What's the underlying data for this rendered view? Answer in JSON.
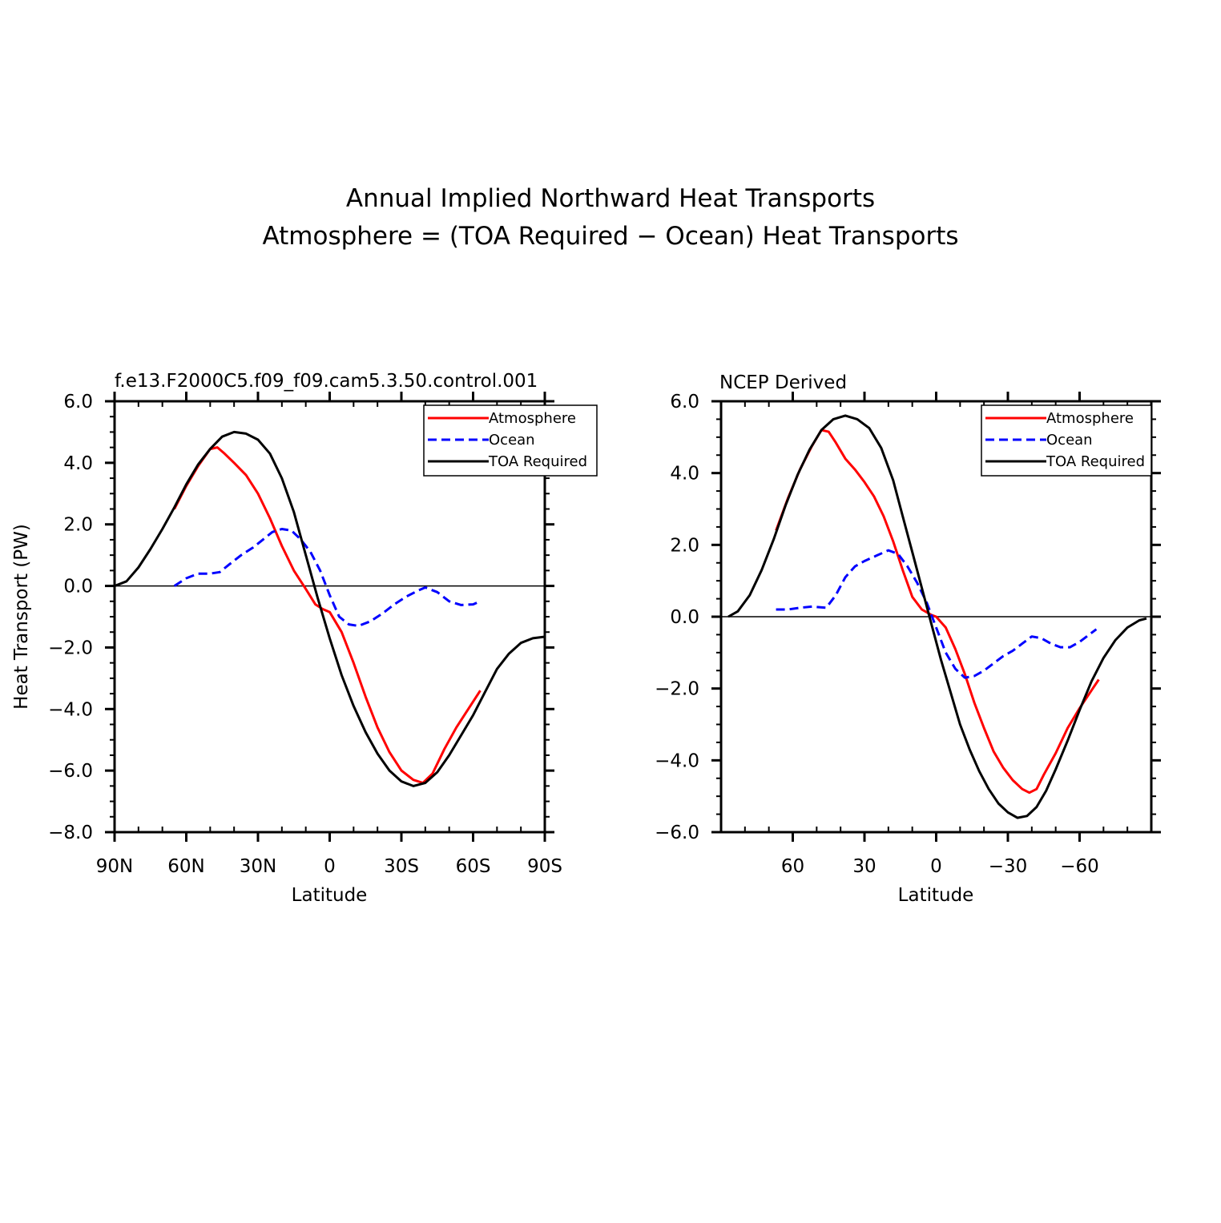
{
  "figure": {
    "title_line1": "Annual Implied Northward Heat Transports",
    "title_line2": "Atmosphere = (TOA Required − Ocean) Heat Transports"
  },
  "colors": {
    "atmosphere": "#ff0000",
    "ocean": "#0000ff",
    "toa": "#000000"
  },
  "chart_data": [
    {
      "type": "line",
      "subtitle": "f.e13.F2000C5.f09_f09.cam5.3.50.control.001",
      "xlabel": "Latitude",
      "ylabel": "Heat Transport (PW)",
      "xlim": [
        90,
        -90
      ],
      "ylim": [
        -8,
        6
      ],
      "xticks": [
        {
          "value": 90,
          "label": "90N"
        },
        {
          "value": 60,
          "label": "60N"
        },
        {
          "value": 30,
          "label": "30N"
        },
        {
          "value": 0,
          "label": "0"
        },
        {
          "value": -30,
          "label": "30S"
        },
        {
          "value": -60,
          "label": "60S"
        },
        {
          "value": -90,
          "label": "90S"
        }
      ],
      "yticks": [
        {
          "value": 6,
          "label": "6.0"
        },
        {
          "value": 4,
          "label": "4.0"
        },
        {
          "value": 2,
          "label": "2.0"
        },
        {
          "value": 0,
          "label": "0.0"
        },
        {
          "value": -2,
          "label": "−2.0"
        },
        {
          "value": -4,
          "label": "−4.0"
        },
        {
          "value": -6,
          "label": "−6.0"
        },
        {
          "value": -8,
          "label": "−8.0"
        }
      ],
      "legend": {
        "position": "top-right",
        "entries": [
          "Atmosphere",
          "Ocean",
          "TOA Required"
        ]
      },
      "series": [
        {
          "name": "Atmosphere",
          "color": "#ff0000",
          "dash": "solid",
          "points": [
            [
              65,
              2.5
            ],
            [
              60,
              3.25
            ],
            [
              55,
              3.9
            ],
            [
              50,
              4.45
            ],
            [
              47,
              4.5
            ],
            [
              44,
              4.3
            ],
            [
              40,
              4.0
            ],
            [
              35,
              3.6
            ],
            [
              30,
              3.0
            ],
            [
              25,
              2.2
            ],
            [
              20,
              1.3
            ],
            [
              15,
              0.5
            ],
            [
              10,
              -0.1
            ],
            [
              6,
              -0.6
            ],
            [
              3,
              -0.75
            ],
            [
              0,
              -0.85
            ],
            [
              -5,
              -1.5
            ],
            [
              -10,
              -2.5
            ],
            [
              -15,
              -3.6
            ],
            [
              -20,
              -4.6
            ],
            [
              -25,
              -5.4
            ],
            [
              -30,
              -6.0
            ],
            [
              -35,
              -6.3
            ],
            [
              -39,
              -6.4
            ],
            [
              -43,
              -6.1
            ],
            [
              -48,
              -5.3
            ],
            [
              -53,
              -4.6
            ],
            [
              -58,
              -4.0
            ],
            [
              -63,
              -3.4
            ]
          ]
        },
        {
          "name": "Ocean",
          "color": "#0000ff",
          "dash": "dashed",
          "points": [
            [
              65,
              0.0
            ],
            [
              60,
              0.25
            ],
            [
              55,
              0.4
            ],
            [
              50,
              0.4
            ],
            [
              46,
              0.45
            ],
            [
              42,
              0.7
            ],
            [
              37,
              1.0
            ],
            [
              32,
              1.25
            ],
            [
              28,
              1.5
            ],
            [
              24,
              1.75
            ],
            [
              20,
              1.85
            ],
            [
              16,
              1.8
            ],
            [
              12,
              1.5
            ],
            [
              8,
              1.1
            ],
            [
              4,
              0.5
            ],
            [
              0,
              -0.3
            ],
            [
              -4,
              -1.0
            ],
            [
              -8,
              -1.25
            ],
            [
              -12,
              -1.3
            ],
            [
              -17,
              -1.15
            ],
            [
              -22,
              -0.9
            ],
            [
              -27,
              -0.6
            ],
            [
              -32,
              -0.35
            ],
            [
              -37,
              -0.15
            ],
            [
              -40,
              -0.05
            ],
            [
              -45,
              -0.2
            ],
            [
              -50,
              -0.5
            ],
            [
              -55,
              -0.62
            ],
            [
              -60,
              -0.6
            ],
            [
              -63,
              -0.5
            ]
          ]
        },
        {
          "name": "TOA Required",
          "color": "#000000",
          "dash": "solid",
          "points": [
            [
              90,
              0.0
            ],
            [
              85,
              0.15
            ],
            [
              80,
              0.6
            ],
            [
              75,
              1.2
            ],
            [
              70,
              1.85
            ],
            [
              65,
              2.55
            ],
            [
              60,
              3.3
            ],
            [
              55,
              3.95
            ],
            [
              50,
              4.45
            ],
            [
              45,
              4.85
            ],
            [
              40,
              5.0
            ],
            [
              35,
              4.95
            ],
            [
              30,
              4.75
            ],
            [
              25,
              4.3
            ],
            [
              20,
              3.5
            ],
            [
              15,
              2.4
            ],
            [
              10,
              1.0
            ],
            [
              5,
              -0.4
            ],
            [
              0,
              -1.7
            ],
            [
              -5,
              -2.9
            ],
            [
              -10,
              -3.9
            ],
            [
              -15,
              -4.75
            ],
            [
              -20,
              -5.45
            ],
            [
              -25,
              -6.0
            ],
            [
              -30,
              -6.35
            ],
            [
              -35,
              -6.5
            ],
            [
              -40,
              -6.4
            ],
            [
              -45,
              -6.05
            ],
            [
              -50,
              -5.5
            ],
            [
              -55,
              -4.85
            ],
            [
              -60,
              -4.2
            ],
            [
              -65,
              -3.45
            ],
            [
              -70,
              -2.7
            ],
            [
              -75,
              -2.2
            ],
            [
              -80,
              -1.85
            ],
            [
              -85,
              -1.7
            ],
            [
              -90,
              -1.65
            ]
          ]
        }
      ]
    },
    {
      "type": "line",
      "subtitle": "NCEP Derived",
      "xlabel": "Latitude",
      "ylabel": "",
      "xlim": [
        90,
        -90
      ],
      "ylim": [
        -6,
        6
      ],
      "xticks": [
        {
          "value": 60,
          "label": "60"
        },
        {
          "value": 30,
          "label": "30"
        },
        {
          "value": 0,
          "label": "0"
        },
        {
          "value": -30,
          "label": "−30"
        },
        {
          "value": -60,
          "label": "−60"
        }
      ],
      "yticks": [
        {
          "value": 6,
          "label": "6.0"
        },
        {
          "value": 4,
          "label": "4.0"
        },
        {
          "value": 2,
          "label": "2.0"
        },
        {
          "value": 0,
          "label": "0.0"
        },
        {
          "value": -2,
          "label": "−2.0"
        },
        {
          "value": -4,
          "label": "−4.0"
        },
        {
          "value": -6,
          "label": "−6.0"
        }
      ],
      "legend": {
        "position": "top-right",
        "entries": [
          "Atmosphere",
          "Ocean",
          "TOA Required"
        ]
      },
      "series": [
        {
          "name": "Atmosphere",
          "color": "#ff0000",
          "dash": "solid",
          "points": [
            [
              67,
              2.4
            ],
            [
              62,
              3.3
            ],
            [
              57,
              4.1
            ],
            [
              52,
              4.75
            ],
            [
              48,
              5.2
            ],
            [
              45,
              5.15
            ],
            [
              42,
              4.85
            ],
            [
              38,
              4.4
            ],
            [
              34,
              4.1
            ],
            [
              30,
              3.75
            ],
            [
              26,
              3.35
            ],
            [
              22,
              2.8
            ],
            [
              18,
              2.1
            ],
            [
              14,
              1.3
            ],
            [
              10,
              0.55
            ],
            [
              6,
              0.2
            ],
            [
              2,
              0.05
            ],
            [
              0,
              0.0
            ],
            [
              -4,
              -0.3
            ],
            [
              -8,
              -0.9
            ],
            [
              -12,
              -1.6
            ],
            [
              -16,
              -2.4
            ],
            [
              -20,
              -3.1
            ],
            [
              -24,
              -3.75
            ],
            [
              -28,
              -4.2
            ],
            [
              -32,
              -4.55
            ],
            [
              -36,
              -4.8
            ],
            [
              -39,
              -4.9
            ],
            [
              -42,
              -4.8
            ],
            [
              -45,
              -4.4
            ],
            [
              -50,
              -3.8
            ],
            [
              -55,
              -3.1
            ],
            [
              -60,
              -2.55
            ],
            [
              -65,
              -2.05
            ],
            [
              -68,
              -1.75
            ]
          ]
        },
        {
          "name": "Ocean",
          "color": "#0000ff",
          "dash": "dashed",
          "points": [
            [
              67,
              0.2
            ],
            [
              62,
              0.2
            ],
            [
              57,
              0.25
            ],
            [
              52,
              0.28
            ],
            [
              46,
              0.25
            ],
            [
              42,
              0.6
            ],
            [
              38,
              1.1
            ],
            [
              34,
              1.4
            ],
            [
              30,
              1.55
            ],
            [
              25,
              1.7
            ],
            [
              20,
              1.85
            ],
            [
              16,
              1.75
            ],
            [
              12,
              1.4
            ],
            [
              8,
              0.95
            ],
            [
              4,
              0.4
            ],
            [
              0,
              -0.3
            ],
            [
              -4,
              -1.0
            ],
            [
              -8,
              -1.45
            ],
            [
              -12,
              -1.7
            ],
            [
              -16,
              -1.65
            ],
            [
              -20,
              -1.5
            ],
            [
              -24,
              -1.3
            ],
            [
              -28,
              -1.1
            ],
            [
              -32,
              -0.95
            ],
            [
              -36,
              -0.75
            ],
            [
              -40,
              -0.55
            ],
            [
              -44,
              -0.6
            ],
            [
              -48,
              -0.75
            ],
            [
              -52,
              -0.85
            ],
            [
              -56,
              -0.85
            ],
            [
              -60,
              -0.7
            ],
            [
              -64,
              -0.5
            ],
            [
              -67,
              -0.35
            ]
          ]
        },
        {
          "name": "TOA Required",
          "color": "#000000",
          "dash": "solid",
          "points": [
            [
              87,
              0.0
            ],
            [
              83,
              0.15
            ],
            [
              78,
              0.6
            ],
            [
              73,
              1.3
            ],
            [
              68,
              2.15
            ],
            [
              63,
              3.1
            ],
            [
              58,
              3.95
            ],
            [
              53,
              4.65
            ],
            [
              48,
              5.2
            ],
            [
              43,
              5.5
            ],
            [
              38,
              5.6
            ],
            [
              33,
              5.5
            ],
            [
              28,
              5.25
            ],
            [
              23,
              4.7
            ],
            [
              18,
              3.8
            ],
            [
              14,
              2.8
            ],
            [
              10,
              1.8
            ],
            [
              6,
              0.8
            ],
            [
              2,
              -0.2
            ],
            [
              -2,
              -1.2
            ],
            [
              -6,
              -2.1
            ],
            [
              -10,
              -3.0
            ],
            [
              -14,
              -3.7
            ],
            [
              -18,
              -4.3
            ],
            [
              -22,
              -4.8
            ],
            [
              -26,
              -5.2
            ],
            [
              -30,
              -5.45
            ],
            [
              -34,
              -5.6
            ],
            [
              -38,
              -5.55
            ],
            [
              -42,
              -5.3
            ],
            [
              -46,
              -4.85
            ],
            [
              -50,
              -4.25
            ],
            [
              -55,
              -3.45
            ],
            [
              -60,
              -2.6
            ],
            [
              -65,
              -1.8
            ],
            [
              -70,
              -1.15
            ],
            [
              -75,
              -0.65
            ],
            [
              -80,
              -0.3
            ],
            [
              -85,
              -0.1
            ],
            [
              -88,
              -0.05
            ]
          ]
        }
      ]
    }
  ]
}
